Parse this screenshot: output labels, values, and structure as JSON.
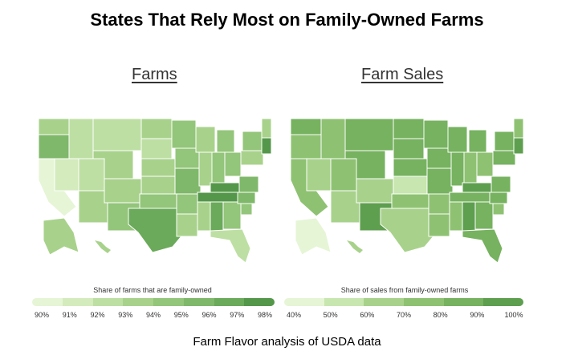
{
  "title": "States That Rely Most on Family-Owned Farms",
  "footer": "Farm Flavor analysis of USDA data",
  "maps": [
    {
      "panel_title": "Farms",
      "legend_caption": "Share of farms that are family-owned",
      "legend_ticks": [
        "90%",
        "91%",
        "92%",
        "93%",
        "94%",
        "95%",
        "96%",
        "97%",
        "98%"
      ],
      "legend_colors": [
        "#e6f5d6",
        "#d3ebbd",
        "#bedfa3",
        "#a8d28b",
        "#93c57a",
        "#7fb86a",
        "#6aaa5a",
        "#54974a"
      ]
    },
    {
      "panel_title": "Farm Sales",
      "legend_caption": "Share of sales from family-owned farms",
      "legend_ticks": [
        "40%",
        "50%",
        "60%",
        "70%",
        "80%",
        "90%",
        "100%"
      ],
      "legend_colors": [
        "#e6f5d6",
        "#c8e6b0",
        "#a8d28b",
        "#8ec272",
        "#76b25f",
        "#5e9f4f"
      ]
    }
  ]
}
